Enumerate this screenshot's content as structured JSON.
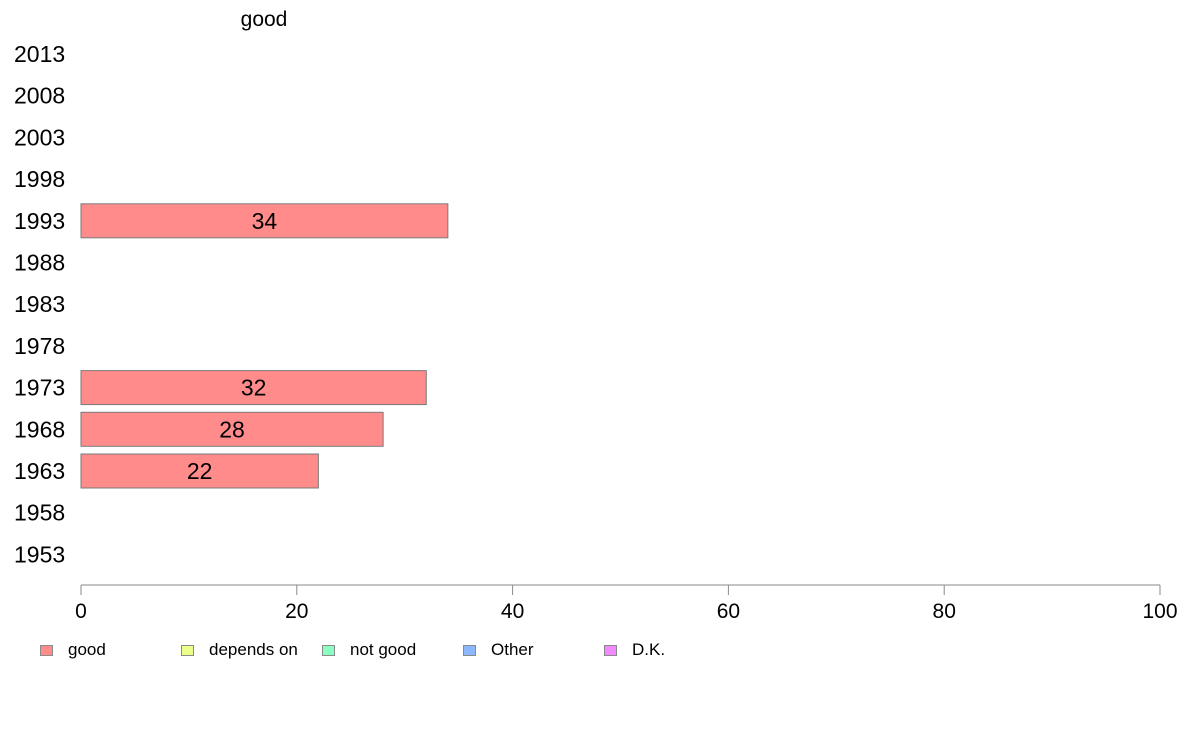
{
  "chart_data": {
    "type": "bar",
    "orientation": "horizontal",
    "series": [
      {
        "name": "good",
        "color": "#ff8b8b",
        "values": [
          null,
          null,
          null,
          null,
          34,
          null,
          null,
          null,
          32,
          28,
          22,
          null,
          null
        ]
      }
    ],
    "panel_title": "good",
    "categories": [
      "2013",
      "2008",
      "2003",
      "1998",
      "1993",
      "1988",
      "1983",
      "1978",
      "1973",
      "1968",
      "1963",
      "1958",
      "1953"
    ],
    "xlim": [
      0,
      100
    ],
    "x_ticks": [
      0,
      20,
      40,
      60,
      80,
      100
    ],
    "grid": false,
    "legend_position": "bottom",
    "legend": [
      {
        "label": "good",
        "color": "#ff8b8b"
      },
      {
        "label": "depends on",
        "color": "#edff8b"
      },
      {
        "label": "not good",
        "color": "#8bffc2"
      },
      {
        "label": "Other",
        "color": "#8bb8ff"
      },
      {
        "label": "D.K.",
        "color": "#f28bff"
      }
    ]
  }
}
